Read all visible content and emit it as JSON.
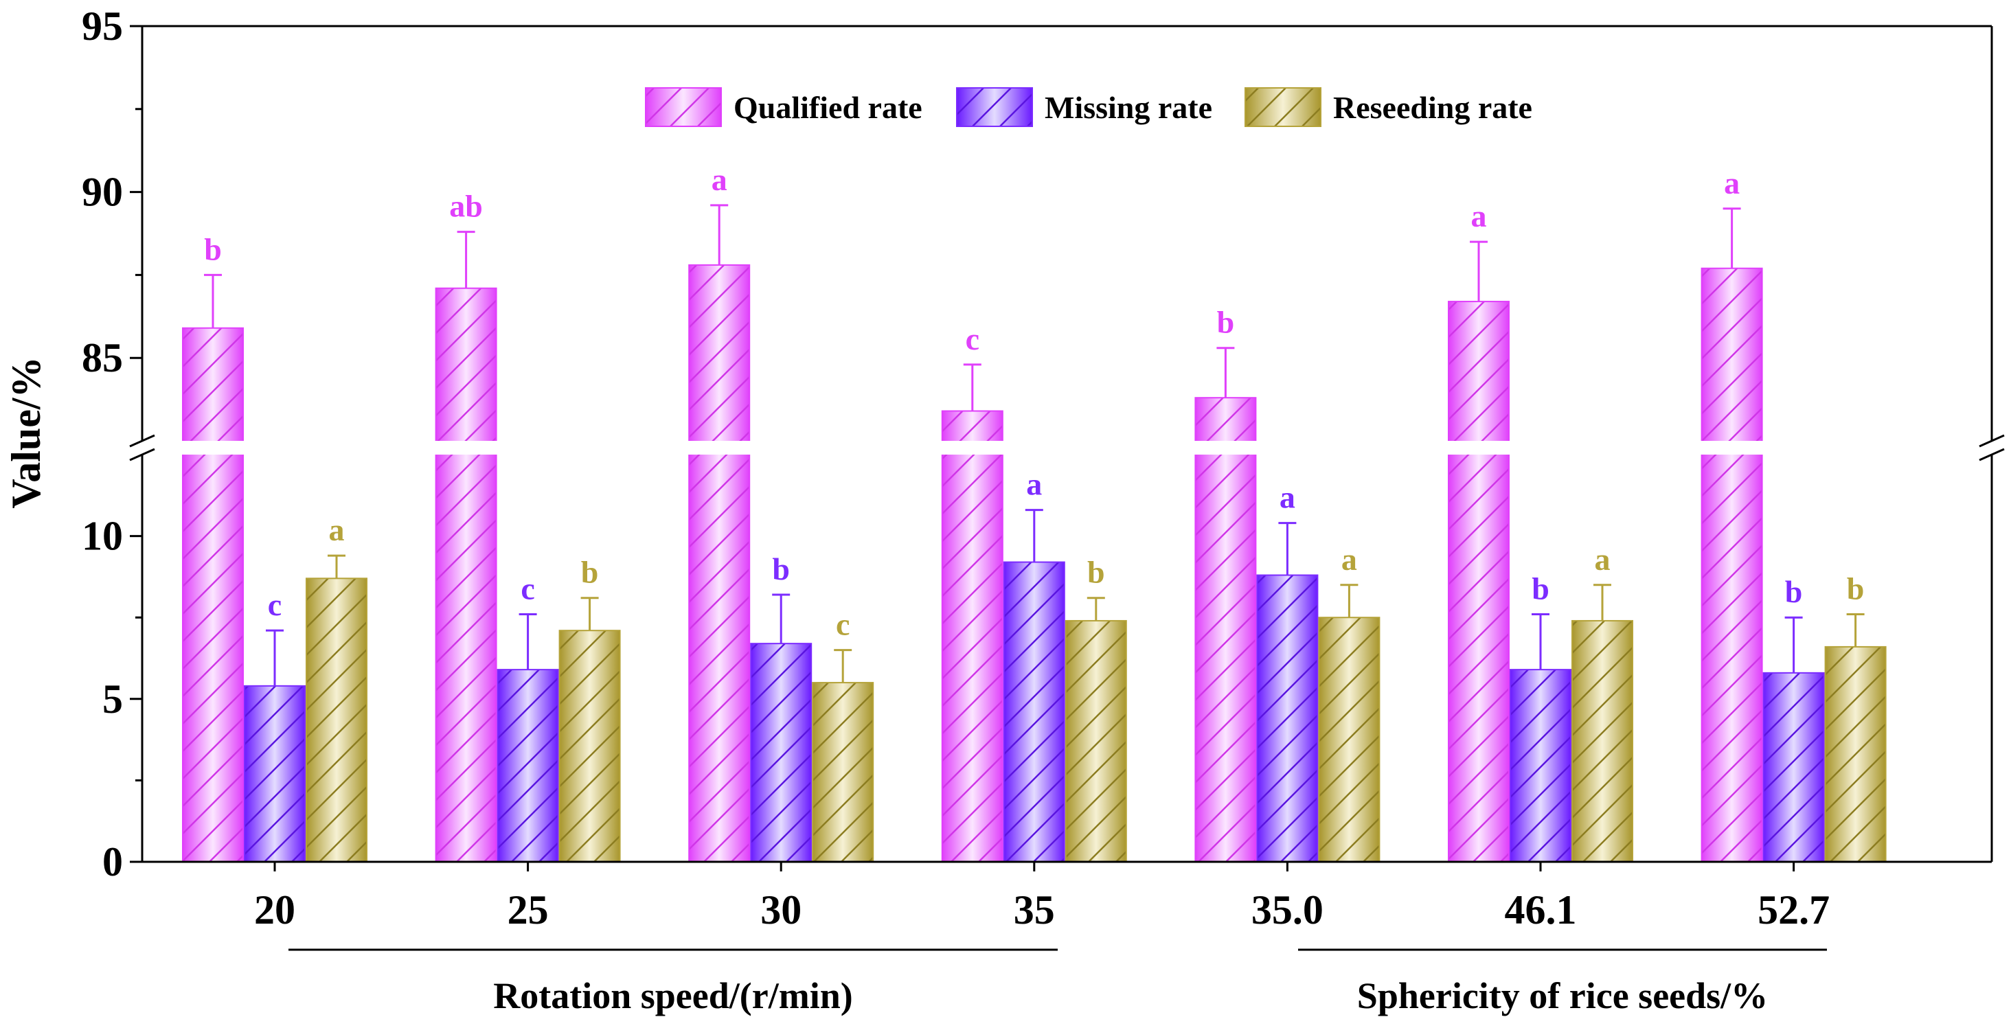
{
  "chart_data": {
    "type": "bar",
    "ylabel": "Value/%",
    "axis_break": {
      "lower_range": [
        0,
        12.5
      ],
      "upper_range": [
        82.5,
        95
      ]
    },
    "y_ticks_lower": [
      "0",
      "5",
      "10"
    ],
    "y_ticks_upper": [
      "85",
      "90",
      "95"
    ],
    "y_tick_values_lower": [
      0,
      5,
      10
    ],
    "y_tick_values_upper": [
      85,
      90,
      95
    ],
    "categories": [
      "20",
      "25",
      "30",
      "35",
      "35.0",
      "46.1",
      "52.7"
    ],
    "groups": [
      {
        "label": "Rotation speed/(r/min)",
        "from": 0,
        "to": 3
      },
      {
        "label": "Sphericity of rice seeds/%",
        "from": 4,
        "to": 6
      }
    ],
    "series": [
      {
        "name": "Qualified rate",
        "color": "#e040fb",
        "values": [
          85.9,
          87.1,
          87.8,
          83.4,
          83.8,
          86.7,
          87.7
        ],
        "errors": [
          1.6,
          1.7,
          1.8,
          1.4,
          1.5,
          1.8,
          1.8
        ],
        "letters": [
          "b",
          "ab",
          "a",
          "c",
          "b",
          "a",
          "a"
        ]
      },
      {
        "name": "Missing rate",
        "color": "#7c2cff",
        "values": [
          5.4,
          5.9,
          6.7,
          9.2,
          8.8,
          5.9,
          5.8
        ],
        "errors": [
          1.7,
          1.7,
          1.5,
          1.6,
          1.6,
          1.7,
          1.7
        ],
        "letters": [
          "c",
          "c",
          "b",
          "a",
          "a",
          "b",
          "b"
        ]
      },
      {
        "name": "Reseeding rate",
        "color": "#b5a33a",
        "values": [
          8.7,
          7.1,
          5.5,
          7.4,
          7.5,
          7.4,
          6.6
        ],
        "errors": [
          0.7,
          1.0,
          1.0,
          0.7,
          1.0,
          1.1,
          1.0
        ],
        "letters": [
          "a",
          "b",
          "c",
          "b",
          "a",
          "a",
          "b"
        ]
      }
    ]
  }
}
